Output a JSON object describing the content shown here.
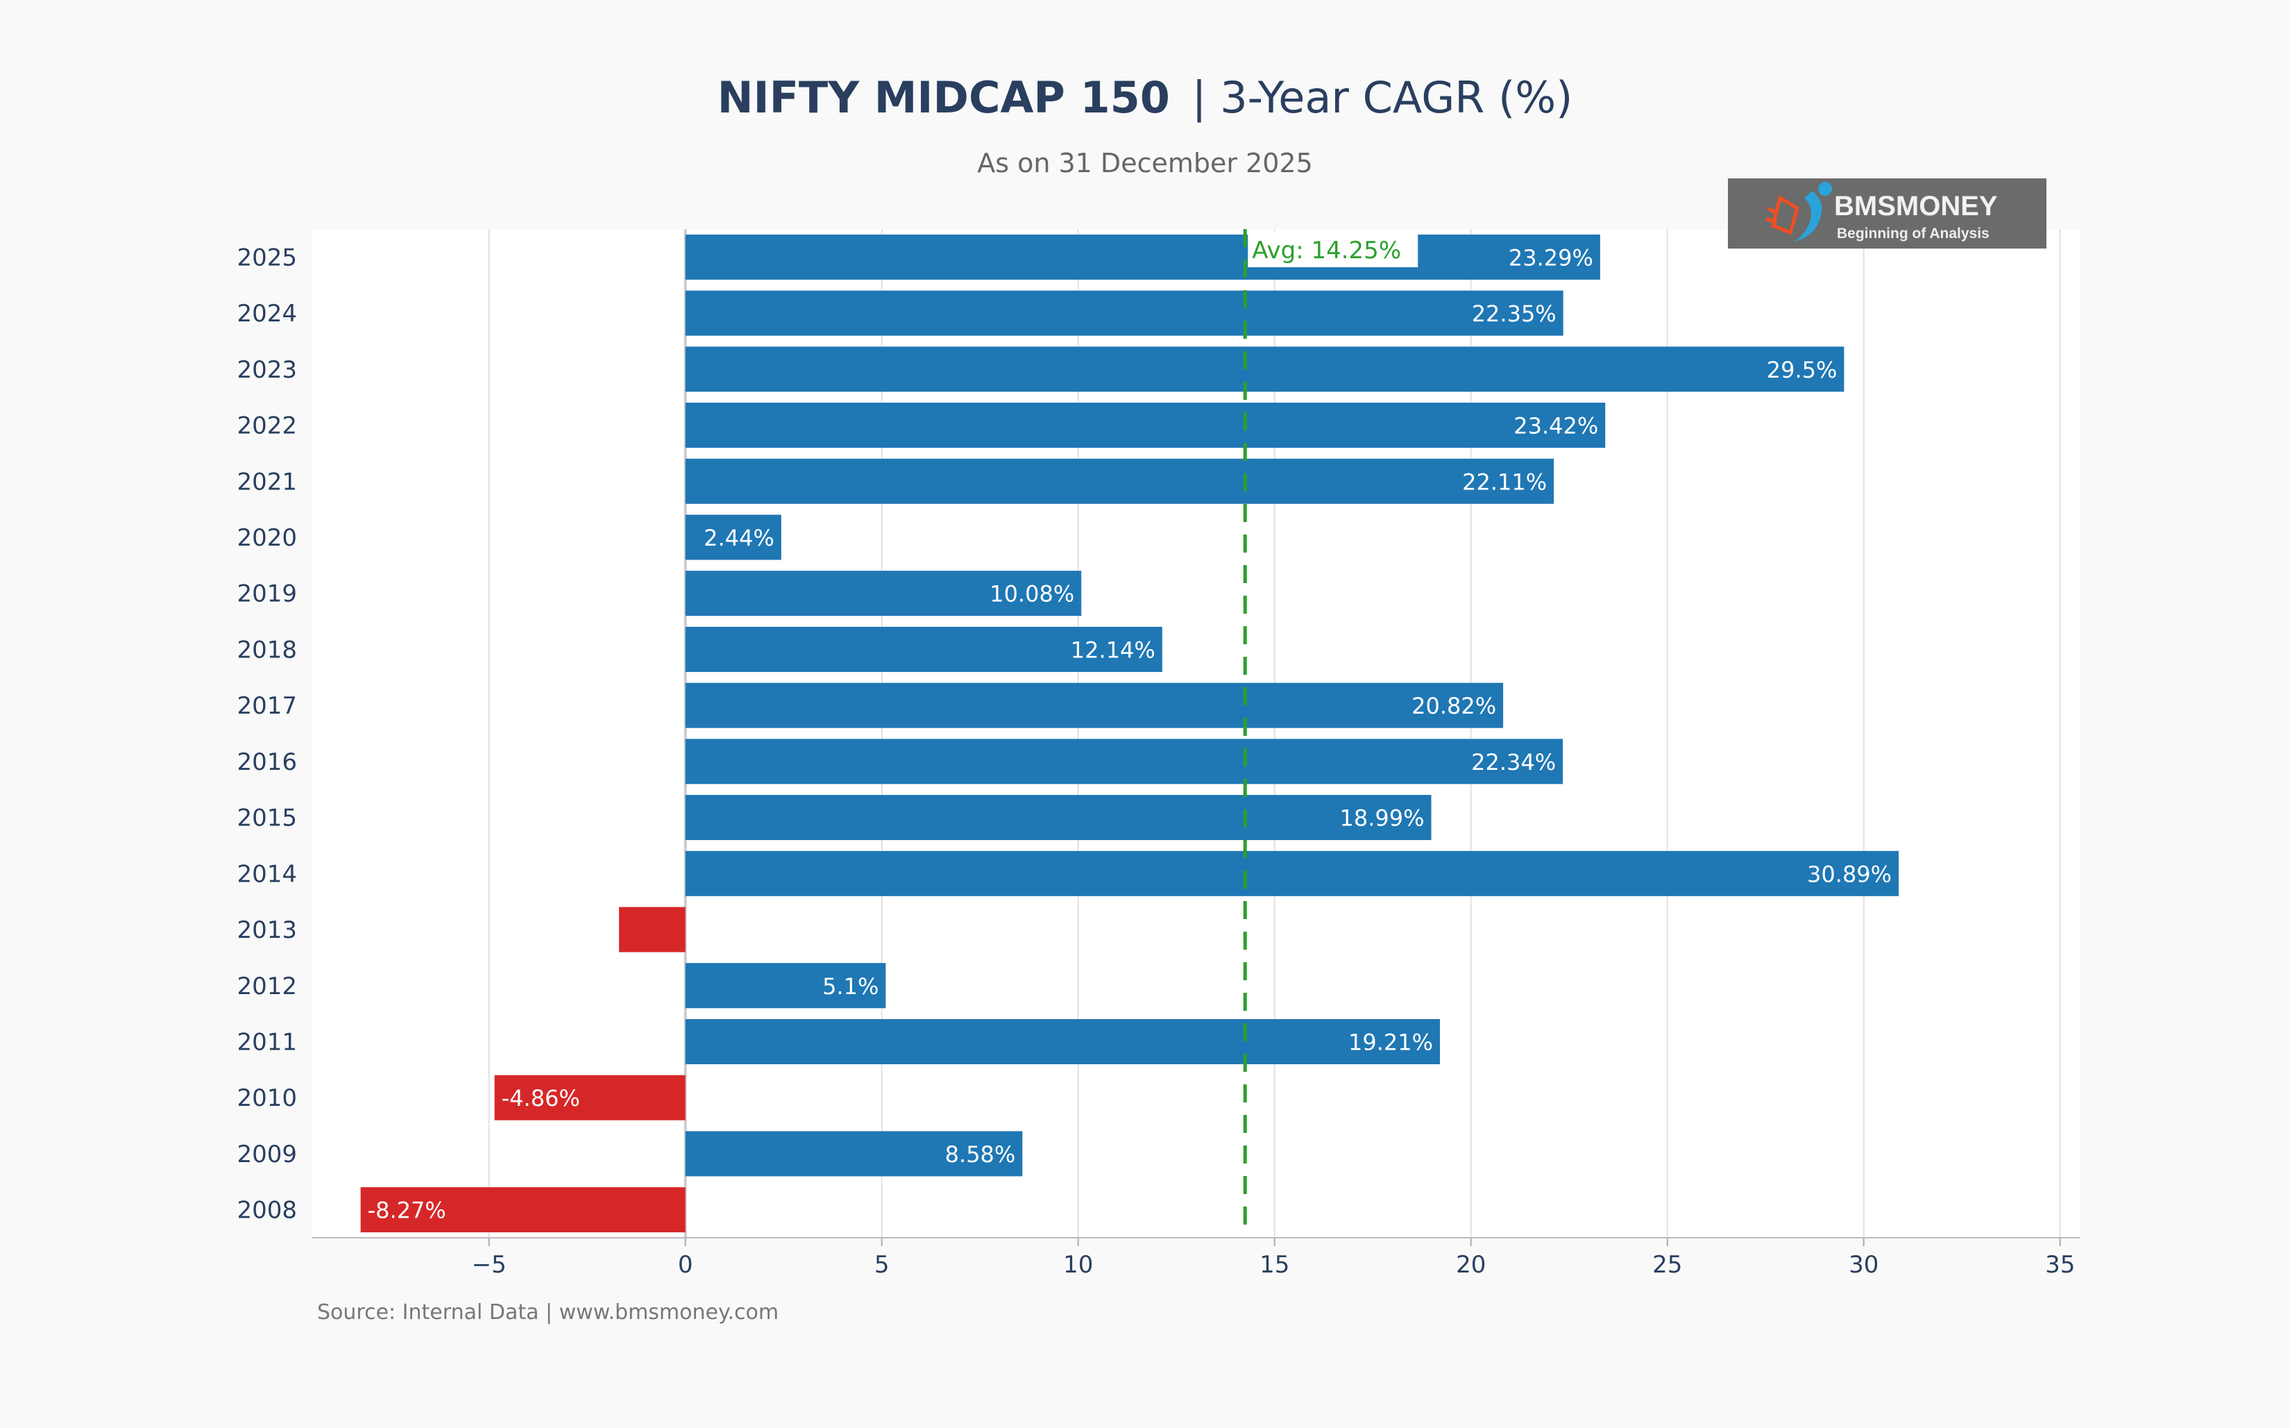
{
  "chart_data": {
    "type": "bar",
    "orientation": "horizontal",
    "title_bold": "NIFTY MIDCAP 150",
    "title_rest": "| 3-Year CAGR (%)",
    "subtitle": "As on 31 December 2025",
    "xlabel": "",
    "ylabel": "",
    "xlim": [
      -9.5,
      35.5
    ],
    "xticks": [
      -5,
      0,
      5,
      10,
      15,
      20,
      25,
      30,
      35
    ],
    "xtick_labels": [
      "−5",
      "0",
      "5",
      "10",
      "15",
      "20",
      "25",
      "30",
      "35"
    ],
    "grid": "vertical",
    "categories": [
      "2025",
      "2024",
      "2023",
      "2022",
      "2021",
      "2020",
      "2019",
      "2018",
      "2017",
      "2016",
      "2015",
      "2014",
      "2013",
      "2012",
      "2011",
      "2010",
      "2009",
      "2008"
    ],
    "values": [
      23.29,
      22.35,
      29.5,
      23.42,
      22.11,
      2.44,
      10.08,
      12.14,
      20.82,
      22.34,
      18.99,
      30.89,
      -1.69,
      5.1,
      19.21,
      -4.86,
      8.58,
      -8.27
    ],
    "data_labels": [
      "23.29%",
      "22.35%",
      "29.5%",
      "23.42%",
      "22.11%",
      "2.44%",
      "10.08%",
      "12.14%",
      "20.82%",
      "22.34%",
      "18.99%",
      "30.89%",
      "",
      "5.1%",
      "19.21%",
      "-4.86%",
      "8.58%",
      "-8.27%"
    ],
    "average": 14.25,
    "average_label": "Avg: 14.25%",
    "colors": {
      "positive": "#1f77b4",
      "negative": "#d62728",
      "average": "#2ca02c"
    },
    "source": "Source: Internal Data | www.bmsmoney.com"
  },
  "logo": {
    "name": "BMSMONEY",
    "tagline": "Beginning of Analysis"
  }
}
